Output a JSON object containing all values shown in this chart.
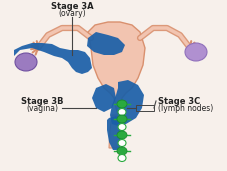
{
  "background_color": "#f7f0eb",
  "uterus_body_color": "#f2c4b0",
  "uterus_outline_color": "#d9906e",
  "cancer_blue_color": "#1a5fa8",
  "ovary_left_color": "#9b7bc0",
  "ovary_right_color": "#b090d0",
  "lymph_node_green": "#2aaa3f",
  "lymph_node_dark": "#1a8a2f",
  "label_3a_bold": "Stage 3A",
  "label_3a_sub": "(ovary)",
  "label_3b_bold": "Stage 3B",
  "label_3b_sub": "(vagina)",
  "label_3c_bold": "Stage 3C",
  "label_3c_sub": "(lymph nodes)",
  "text_color": "#222222",
  "line_color": "#444444",
  "figsize": [
    2.28,
    1.71
  ],
  "dpi": 100
}
